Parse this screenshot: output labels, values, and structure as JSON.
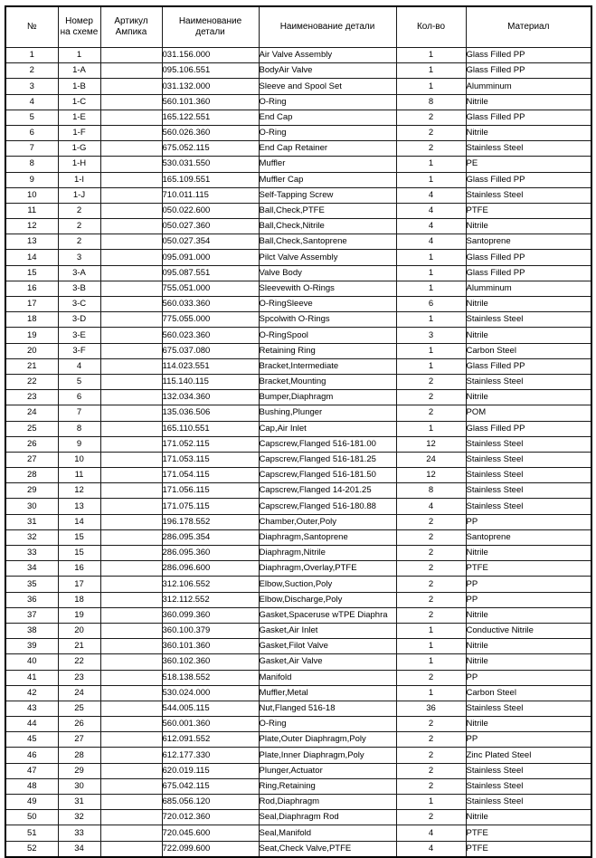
{
  "table": {
    "headers": {
      "num": "№",
      "scheme": "Номер\nна схеме",
      "article": "Артикул\nАмпика",
      "part_number": "Наименование\nдетали",
      "part_name": "Наименование детали",
      "qty": "Кол-во",
      "material": "Материал"
    },
    "rows": [
      [
        "1",
        "1",
        "",
        "031.156.000",
        "Air Valve Assembly",
        "1",
        "Glass Filled PP"
      ],
      [
        "2",
        "1-A",
        "",
        "095.106.551",
        "BodyAir Valve",
        "1",
        "Glass Filled PP"
      ],
      [
        "3",
        "1-B",
        "",
        "031.132.000",
        "Sleeve and Spool Set",
        "1",
        "Alumminum"
      ],
      [
        "4",
        "1-C",
        "",
        "560.101.360",
        "O-Ring",
        "8",
        "Nitrile"
      ],
      [
        "5",
        "1-E",
        "",
        "165.122.551",
        "End Cap",
        "2",
        "Glass Filled PP"
      ],
      [
        "6",
        "1-F",
        "",
        "560.026.360",
        "O-Ring",
        "2",
        "Nitrile"
      ],
      [
        "7",
        "1-G",
        "",
        "675.052.115",
        "End Cap Retainer",
        "2",
        "Stainless Steel"
      ],
      [
        "8",
        "1-H",
        "",
        "530.031.550",
        "Muffler",
        "1",
        "PE"
      ],
      [
        "9",
        "1-I",
        "",
        "165.109.551",
        "Muffler Cap",
        "1",
        "Glass Filled PP"
      ],
      [
        "10",
        "1-J",
        "",
        "710.011.115",
        "Self-Tapping Screw",
        "4",
        "Stainless Steel"
      ],
      [
        "11",
        "2",
        "",
        "050.022.600",
        "Ball,Check,PTFE",
        "4",
        "PTFE"
      ],
      [
        "12",
        "2",
        "",
        "050.027.360",
        "Ball,Check,Nitrile",
        "4",
        "Nitrile"
      ],
      [
        "13",
        "2",
        "",
        "050.027.354",
        "Ball,Check,Santoprene",
        "4",
        "Santoprene"
      ],
      [
        "14",
        "3",
        "",
        "095.091.000",
        "Pilct Valve Assembly",
        "1",
        "Glass Filled PP"
      ],
      [
        "15",
        "3-A",
        "",
        "095.087.551",
        "Valve Body",
        "1",
        "Glass Filled PP"
      ],
      [
        "16",
        "3-B",
        "",
        "755.051.000",
        "Sleevewith O-Rings",
        "1",
        "Alumminum"
      ],
      [
        "17",
        "3-C",
        "",
        "560.033.360",
        "O-RingSleeve",
        "6",
        "Nitrile"
      ],
      [
        "18",
        "3-D",
        "",
        "775.055.000",
        "Spcolwith O-Rings",
        "1",
        "Stainless Steel"
      ],
      [
        "19",
        "3-E",
        "",
        "560.023.360",
        "O-RingSpool",
        "3",
        "Nitrile"
      ],
      [
        "20",
        "3-F",
        "",
        "675.037.080",
        "Retaining Ring",
        "1",
        "Carbon Steel"
      ],
      [
        "21",
        "4",
        "",
        "114.023.551",
        "Bracket,Intermediate",
        "1",
        "Glass Filled PP"
      ],
      [
        "22",
        "5",
        "",
        "115.140.115",
        "Bracket,Mounting",
        "2",
        "Stainless Steel"
      ],
      [
        "23",
        "6",
        "",
        "132.034.360",
        "Bumper,Diaphragm",
        "2",
        "Nitrile"
      ],
      [
        "24",
        "7",
        "",
        "135.036.506",
        "Bushing,Plunger",
        "2",
        "POM"
      ],
      [
        "25",
        "8",
        "",
        "165.110.551",
        "Cap,Air Inlet",
        "1",
        "Glass Filled PP"
      ],
      [
        "26",
        "9",
        "",
        "171.052.115",
        "Capscrew,Flanged 516-181.00",
        "12",
        "Stainless Steel"
      ],
      [
        "27",
        "10",
        "",
        "171.053.115",
        "Capscrew,Flanged 516-181.25",
        "24",
        "Stainless Steel"
      ],
      [
        "28",
        "11",
        "",
        "171.054.115",
        "Capscrew,Flanged 516-181.50",
        "12",
        "Stainless Steel"
      ],
      [
        "29",
        "12",
        "",
        "171.056.115",
        "Capscrew,Flanged 14-201.25",
        "8",
        "Stainless Steel"
      ],
      [
        "30",
        "13",
        "",
        "171.075.115",
        "Capscrew,Flanged 516-180.88",
        "4",
        "Stainless Steel"
      ],
      [
        "31",
        "14",
        "",
        "196.178.552",
        "Chamber,Outer,Poly",
        "2",
        "PP"
      ],
      [
        "32",
        "15",
        "",
        "286.095.354",
        "Diaphragm,Santoprene",
        "2",
        "Santoprene"
      ],
      [
        "33",
        "15",
        "",
        "286.095.360",
        "Diaphragm,Nitrile",
        "2",
        "Nitrile"
      ],
      [
        "34",
        "16",
        "",
        "286.096.600",
        "Diaphragm,Overlay,PTFE",
        "2",
        "PTFE"
      ],
      [
        "35",
        "17",
        "",
        "312.106.552",
        "Elbow,Suction,Poly",
        "2",
        "PP"
      ],
      [
        "36",
        "18",
        "",
        "312.112.552",
        "Elbow,Discharge,Poly",
        "2",
        "PP"
      ],
      [
        "37",
        "19",
        "",
        "360.099.360",
        "Gasket,Spaceruse wTPE Diaphra",
        "2",
        "Nitrile"
      ],
      [
        "38",
        "20",
        "",
        "360.100.379",
        "Gasket,Air Inlet",
        "1",
        "Conductive Nitrile"
      ],
      [
        "39",
        "21",
        "",
        "360.101.360",
        "Gasket,Filot Valve",
        "1",
        "Nitrile"
      ],
      [
        "40",
        "22",
        "",
        "360.102.360",
        "Gasket,Air Valve",
        "1",
        "Nitrile"
      ],
      [
        "41",
        "23",
        "",
        "518.138.552",
        "Manifold",
        "2",
        "PP"
      ],
      [
        "42",
        "24",
        "",
        "530.024.000",
        "Muffler,Metal",
        "1",
        "Carbon Steel"
      ],
      [
        "43",
        "25",
        "",
        "544.005.115",
        "Nut,Flanged 516-18",
        "36",
        "Stainless Steel"
      ],
      [
        "44",
        "26",
        "",
        "560.001.360",
        "O-Ring",
        "2",
        "Nitrile"
      ],
      [
        "45",
        "27",
        "",
        "612.091.552",
        "Plate,Outer Diaphragm,Poly",
        "2",
        "PP"
      ],
      [
        "46",
        "28",
        "",
        "612.177.330",
        "Plate,Inner Diaphragm,Poly",
        "2",
        "Zinc Plated Steel"
      ],
      [
        "47",
        "29",
        "",
        "620.019.115",
        "Plunger,Actuator",
        "2",
        "Stainless Steel"
      ],
      [
        "48",
        "30",
        "",
        "675.042.115",
        "Ring,Retaining",
        "2",
        "Stainless Steel"
      ],
      [
        "49",
        "31",
        "",
        "685.056.120",
        "Rod,Diaphragm",
        "1",
        "Stainless Steel"
      ],
      [
        "50",
        "32",
        "",
        "720.012.360",
        "Seal,Diaphragm Rod",
        "2",
        "Nitrile"
      ],
      [
        "51",
        "33",
        "",
        "720.045.600",
        "Seal,Manifold",
        "4",
        "PTFE"
      ],
      [
        "52",
        "34",
        "",
        "722.099.600",
        "Seat,Check Valve,PTFE",
        "4",
        "PTFE"
      ]
    ]
  }
}
